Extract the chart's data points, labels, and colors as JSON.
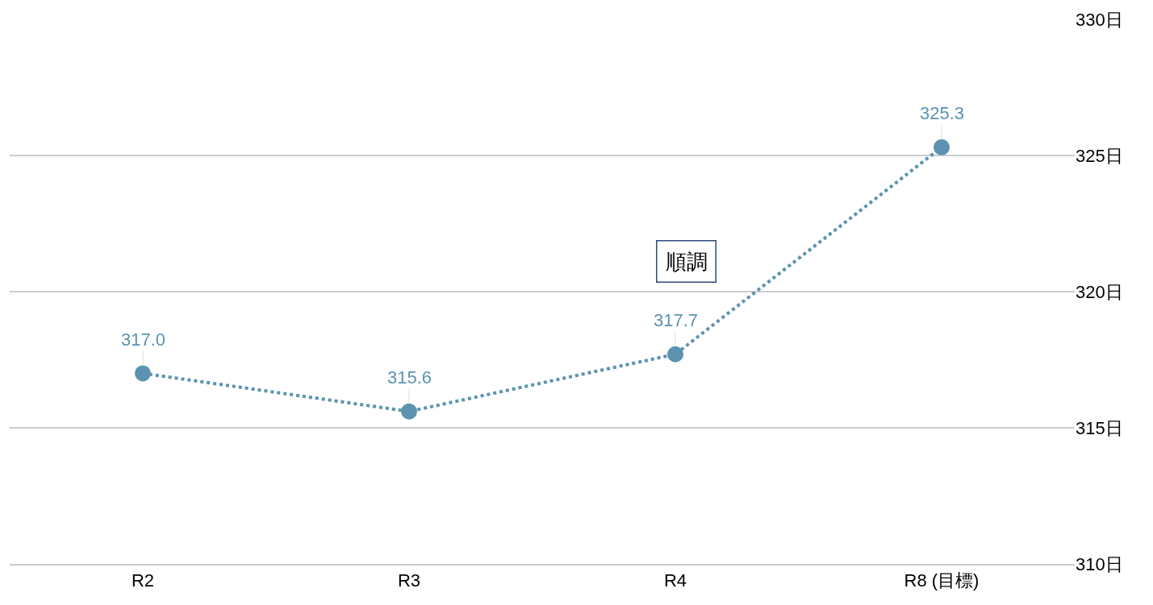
{
  "chart_data": {
    "type": "line",
    "categories": [
      "R2",
      "R3",
      "R4",
      "R8 (目標)"
    ],
    "series": [
      {
        "color": "#5b93b0",
        "values": [
          317.0,
          315.6,
          317.7,
          325.3
        ],
        "value_labels": [
          "317.0",
          "315.6",
          "317.7",
          "325.3"
        ]
      }
    ],
    "ylim": [
      310,
      330
    ],
    "yticks": [
      {
        "value": 310,
        "label": "310日"
      },
      {
        "value": 315,
        "label": "315日"
      },
      {
        "value": 320,
        "label": "320日"
      },
      {
        "value": 325,
        "label": "325日"
      },
      {
        "value": 330,
        "label": "330日"
      }
    ],
    "grid": "y",
    "marker": "circle",
    "line_style": "dotted",
    "annotations": [
      "順調"
    ]
  }
}
